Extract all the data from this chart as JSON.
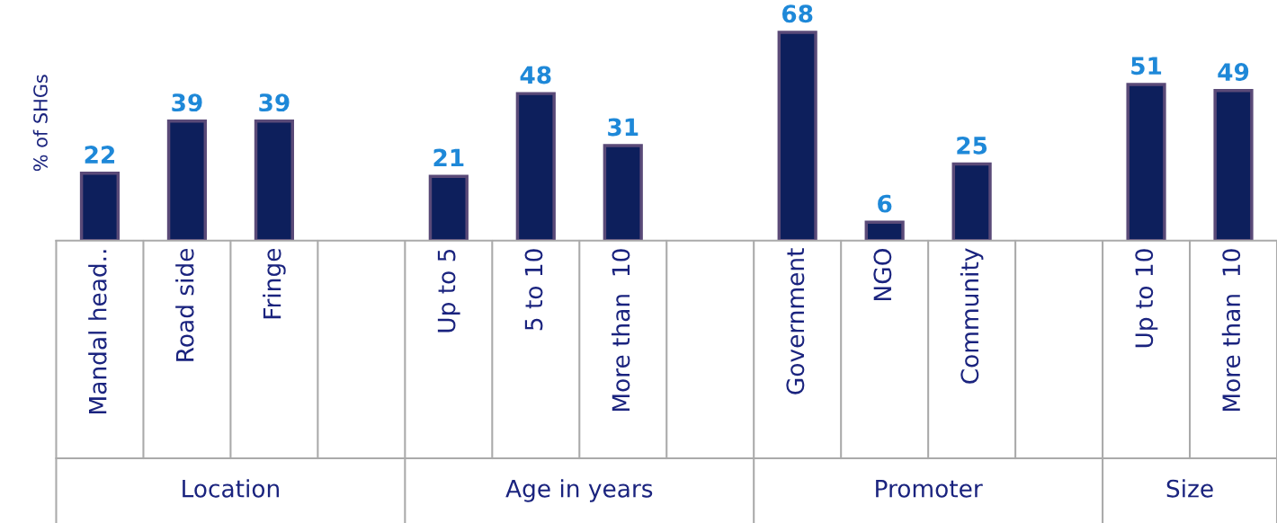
{
  "chart_data": {
    "type": "bar",
    "ylabel": "% of SHGs",
    "categories": [
      "Mandal head..",
      "Road side",
      "Fringe",
      null,
      "Up to 5",
      "5 to 10",
      "More than  10",
      null,
      "Government",
      "NGO",
      "Community",
      null,
      "Up to 10",
      "More than  10"
    ],
    "values": [
      22,
      39,
      39,
      null,
      21,
      48,
      31,
      null,
      68,
      6,
      25,
      null,
      51,
      49
    ],
    "color": "#0d1f5c",
    "data_labels": true,
    "tick_labels": "x",
    "annotations": [
      "Location",
      "Age in years",
      "Promoter",
      "Size"
    ]
  }
}
